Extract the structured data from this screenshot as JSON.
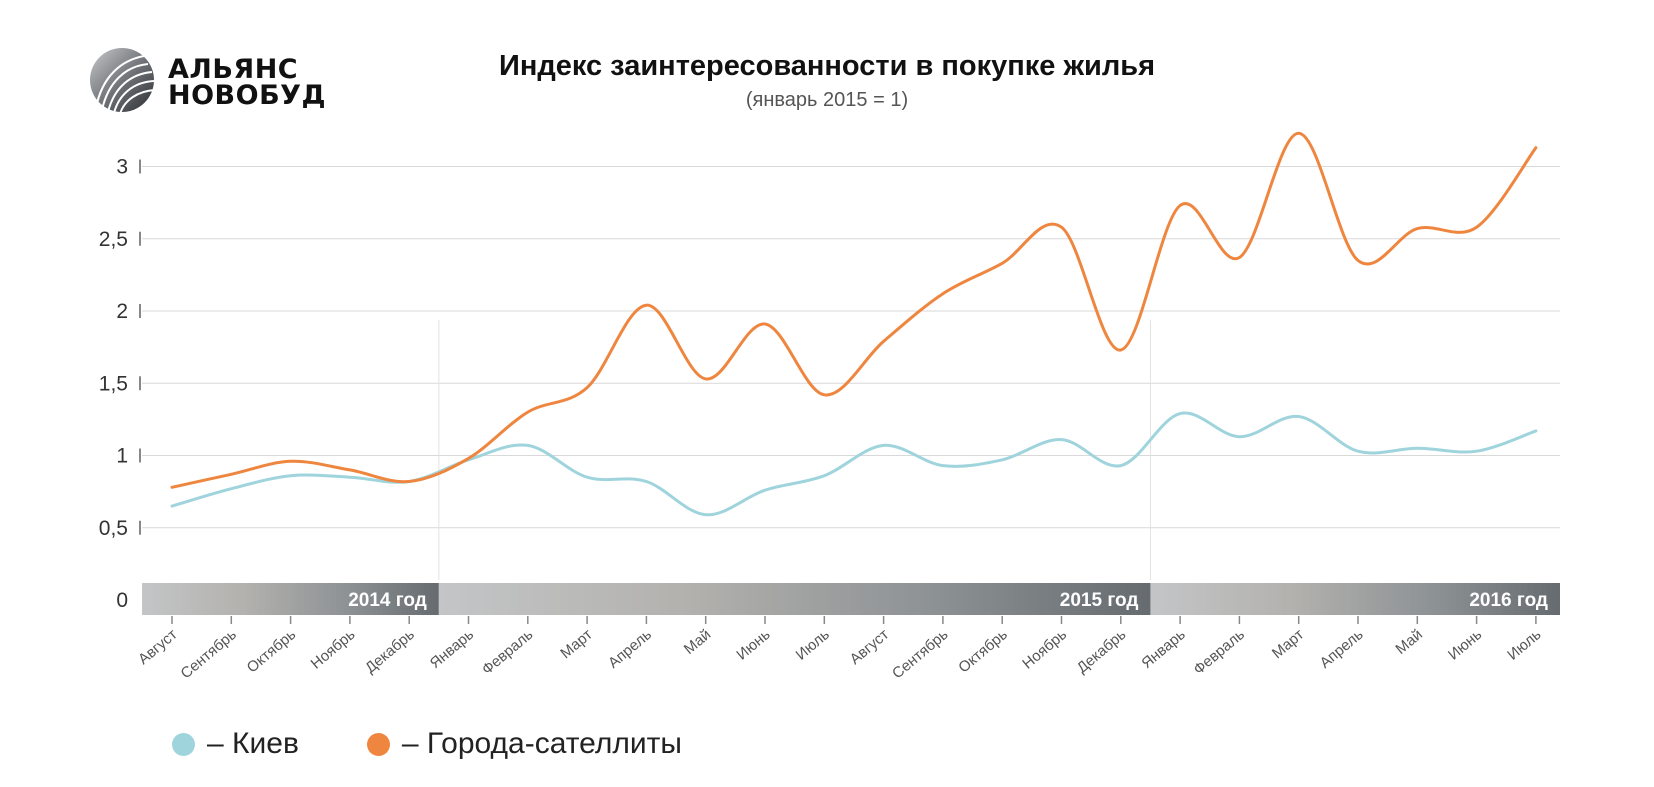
{
  "logo": {
    "line1": "АЛЬЯНС",
    "line2": "НОВОБУД"
  },
  "chart_data": {
    "type": "line",
    "title": "Индекс заинтересованности в покупке жилья",
    "subtitle": "(январь 2015 = 1)",
    "categories": [
      "Август",
      "Сентябрь",
      "Октябрь",
      "Ноябрь",
      "Декабрь",
      "Январь",
      "Февраль",
      "Март",
      "Апрель",
      "Май",
      "Июнь",
      "Июль",
      "Август",
      "Сентябрь",
      "Октябрь",
      "Ноябрь",
      "Декабрь",
      "Январь",
      "Февраль",
      "Март",
      "Апрель",
      "Май",
      "Июнь",
      "Июль"
    ],
    "series": [
      {
        "name": "Киев",
        "color": "#9fd4dd",
        "values": [
          0.65,
          0.77,
          0.86,
          0.85,
          0.82,
          0.97,
          1.07,
          0.85,
          0.82,
          0.59,
          0.76,
          0.86,
          1.07,
          0.93,
          0.97,
          1.11,
          0.93,
          1.29,
          1.13,
          1.27,
          1.03,
          1.05,
          1.03,
          1.17
        ]
      },
      {
        "name": "Города-сателлиты",
        "color": "#ef863f",
        "values": [
          0.78,
          0.87,
          0.96,
          0.9,
          0.82,
          0.98,
          1.3,
          1.47,
          2.04,
          1.53,
          1.91,
          1.42,
          1.79,
          2.12,
          2.33,
          2.58,
          1.73,
          2.73,
          2.37,
          3.23,
          2.35,
          2.57,
          2.58,
          3.13
        ]
      }
    ],
    "ylim": [
      0,
      3.25
    ],
    "yticks": [
      {
        "value": 0,
        "label": "0"
      },
      {
        "value": 0.5,
        "label": "0,5"
      },
      {
        "value": 1,
        "label": "1"
      },
      {
        "value": 1.5,
        "label": "1,5"
      },
      {
        "value": 2,
        "label": "2"
      },
      {
        "value": 2.5,
        "label": "2,5"
      },
      {
        "value": 3,
        "label": "3"
      }
    ],
    "year_bands": [
      {
        "label": "2014 год",
        "start": "Август",
        "end": "Декабрь"
      },
      {
        "label": "2015 год",
        "start": "Январь",
        "end": "Декабрь"
      },
      {
        "label": "2016 год",
        "start": "Январь",
        "end": "Июль"
      }
    ],
    "grid": true,
    "legend_position": "bottom-left"
  },
  "colors": {
    "grid": "#d9d9d9",
    "band_light": "#c5c6c8",
    "band_dark": "#6d7377"
  }
}
